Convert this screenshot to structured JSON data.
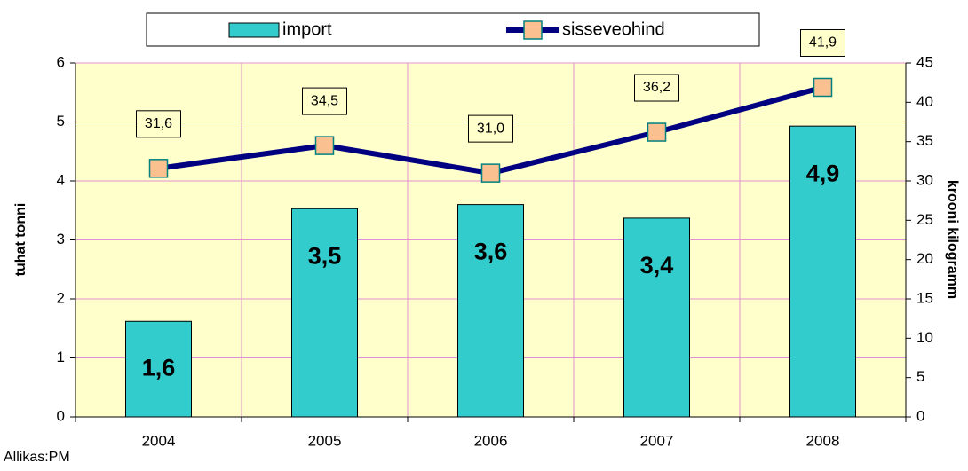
{
  "chart_data": {
    "type": "bar_line",
    "categories": [
      "2004",
      "2005",
      "2006",
      "2007",
      "2008"
    ],
    "series": [
      {
        "name": "import",
        "type": "bar",
        "color": "#33cccc",
        "axis": "y",
        "values": [
          1.62,
          3.53,
          3.6,
          3.37,
          4.93
        ],
        "value_labels": [
          "1,6",
          "3,5",
          "3,6",
          "3,4",
          "4,9"
        ]
      },
      {
        "name": "sisseveohind",
        "type": "line",
        "color": "#000080",
        "marker_color": "#fac090",
        "axis": "y2",
        "values": [
          31.6,
          34.5,
          31.0,
          36.2,
          41.9
        ],
        "value_labels": [
          "31,6",
          "34,5",
          "31,0",
          "36,2",
          "41,9"
        ]
      }
    ],
    "ylabel": "tuhat tonni",
    "y2label": "krooni kilogramm",
    "ylim": [
      0,
      6
    ],
    "yticks": [
      0,
      1,
      2,
      3,
      4,
      5,
      6
    ],
    "y2lim": [
      0,
      45
    ],
    "y2ticks": [
      0,
      5,
      10,
      15,
      20,
      25,
      30,
      35,
      40,
      45
    ],
    "grid": true,
    "legend": "top",
    "source": "Allikas:PM"
  }
}
